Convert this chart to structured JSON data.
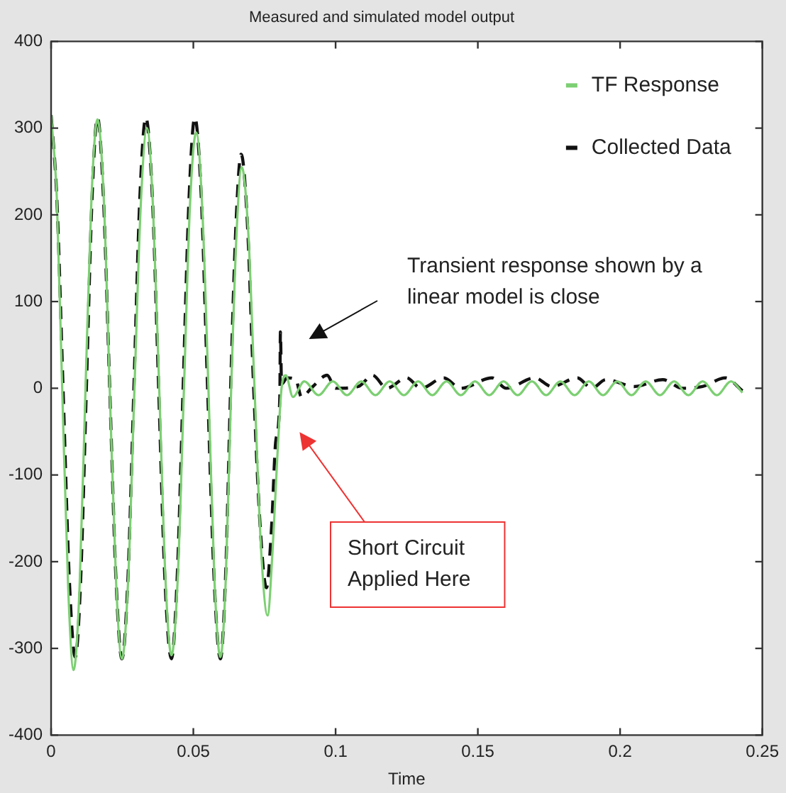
{
  "chart_data": {
    "type": "line",
    "title": "Measured and simulated model output",
    "xlabel": "Time",
    "xlim": [
      0,
      0.25
    ],
    "xticks": [
      0,
      0.05,
      0.1,
      0.15,
      0.2,
      0.25
    ],
    "ylim": [
      -400,
      400
    ],
    "yticks": [
      -400,
      -300,
      -200,
      -100,
      0,
      100,
      200,
      300,
      400
    ],
    "legend": "top right",
    "marker": "none",
    "series": [
      {
        "name": "TF Response",
        "color": "#7ccf72",
        "line_style": "solid",
        "x": [
          0,
          0.002,
          0.0039,
          0.006,
          0.0079,
          0.01,
          0.0121,
          0.0142,
          0.0163,
          0.0185,
          0.0206,
          0.0228,
          0.0249,
          0.0271,
          0.0293,
          0.0315,
          0.0337,
          0.0358,
          0.038,
          0.0402,
          0.0423,
          0.0445,
          0.0467,
          0.0488,
          0.051,
          0.0531,
          0.0553,
          0.0574,
          0.0595,
          0.0614,
          0.0633,
          0.0652,
          0.067,
          0.0693,
          0.0715,
          0.0738,
          0.0761,
          0.0778,
          0.0795,
          0.081,
          0.0825,
          0.085,
          0.089,
          0.094,
          0.099,
          0.104,
          0.109,
          0.114,
          0.119,
          0.124,
          0.129,
          0.134,
          0.139,
          0.144,
          0.149,
          0.154,
          0.159,
          0.164,
          0.169,
          0.174,
          0.179,
          0.184,
          0.189,
          0.194,
          0.199,
          0.204,
          0.209,
          0.214,
          0.219,
          0.224,
          0.229,
          0.234,
          0.239,
          0.243
        ],
        "values": [
          315,
          220,
          0,
          -230,
          -325,
          -230,
          0,
          220,
          310,
          220,
          0,
          -220,
          -312,
          -220,
          0,
          210,
          300,
          210,
          0,
          -220,
          -308,
          -220,
          0,
          210,
          295,
          210,
          0,
          -220,
          -310,
          -220,
          0,
          180,
          255,
          180,
          0,
          -185,
          -262,
          -190,
          -80,
          0,
          15,
          -10,
          8,
          -8,
          8,
          -8,
          8,
          -8,
          8,
          -8,
          8,
          -8,
          8,
          -8,
          8,
          -8,
          8,
          -8,
          8,
          -8,
          8,
          -8,
          8,
          -8,
          8,
          -8,
          8,
          -8,
          8,
          -8,
          8,
          -8,
          8,
          -5
        ]
      },
      {
        "name": "Collected Data",
        "color": "#111111",
        "line_style": "dashed",
        "x": [
          0,
          0.002,
          0.0042,
          0.0064,
          0.0085,
          0.0104,
          0.0124,
          0.0144,
          0.0163,
          0.0184,
          0.0206,
          0.0228,
          0.0249,
          0.027,
          0.0291,
          0.0312,
          0.0333,
          0.0356,
          0.0378,
          0.04,
          0.0423,
          0.0443,
          0.0464,
          0.0485,
          0.0505,
          0.0528,
          0.055,
          0.0573,
          0.0595,
          0.0613,
          0.0631,
          0.065,
          0.0668,
          0.069,
          0.0712,
          0.0735,
          0.0757,
          0.0775,
          0.079,
          0.0804,
          0.0806,
          0.081,
          0.083,
          0.086,
          0.088,
          0.092,
          0.097,
          0.1,
          0.108,
          0.113,
          0.118,
          0.125,
          0.13,
          0.138,
          0.144,
          0.155,
          0.16,
          0.17,
          0.176,
          0.185,
          0.19,
          0.195,
          0.205,
          0.215,
          0.222,
          0.229,
          0.237,
          0.243
        ],
        "values": [
          315,
          220,
          0,
          -220,
          -310,
          -220,
          0,
          220,
          312,
          220,
          0,
          -220,
          -312,
          -220,
          0,
          220,
          312,
          220,
          0,
          -220,
          -312,
          -220,
          0,
          220,
          312,
          220,
          0,
          -220,
          -312,
          -220,
          0,
          190,
          270,
          190,
          0,
          -160,
          -230,
          -160,
          -60,
          -10,
          65,
          5,
          12,
          10,
          -10,
          2,
          15,
          0,
          2,
          15,
          0,
          12,
          0,
          12,
          0,
          12,
          0,
          12,
          2,
          12,
          0,
          10,
          2,
          10,
          0,
          2,
          12,
          -3
        ]
      }
    ],
    "annotations": [
      "Transient response shown by a linear model is close",
      "Short Circuit Applied Here"
    ]
  }
}
